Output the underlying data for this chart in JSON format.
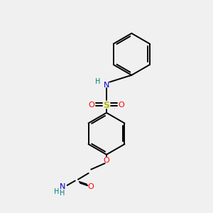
{
  "background_color": "#f0f0f0",
  "bond_color": "#000000",
  "N_color": "#0000cd",
  "O_color": "#ff0000",
  "S_color": "#b8b800",
  "H_color": "#008080",
  "line_width": 1.4,
  "fig_width": 3.0,
  "fig_height": 3.0,
  "dpi": 100,
  "xlim": [
    0,
    10
  ],
  "ylim": [
    0,
    10
  ]
}
